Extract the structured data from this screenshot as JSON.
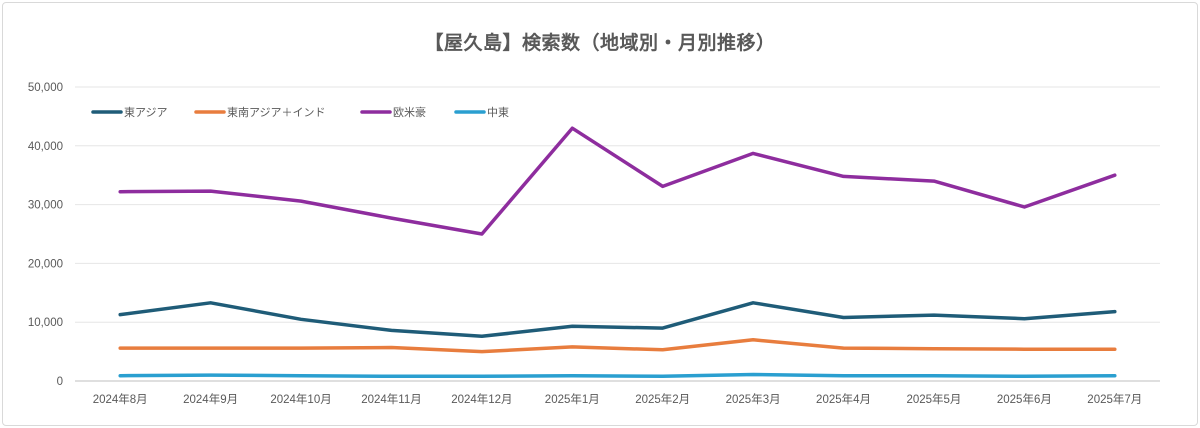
{
  "chart_data": {
    "type": "line",
    "title": "【屋久島】検索数（地域別・月別推移）",
    "x": [
      "2024年8月",
      "2024年9月",
      "2024年10月",
      "2024年11月",
      "2024年12月",
      "2025年1月",
      "2025年2月",
      "2025年3月",
      "2025年4月",
      "2025年5月",
      "2025年6月",
      "2025年7月"
    ],
    "ylim": [
      0,
      50000
    ],
    "yticks": [
      "0",
      "10,000",
      "20,000",
      "30,000",
      "40,000",
      "50,000"
    ],
    "ytick_values": [
      0,
      10000,
      20000,
      30000,
      40000,
      50000
    ],
    "grid": true,
    "legend_position": "top-left",
    "series": [
      {
        "name": "東アジア",
        "color": "#1f5c78",
        "values": [
          11300,
          13300,
          10500,
          8600,
          7600,
          9300,
          9000,
          13300,
          10800,
          11200,
          10600,
          11800
        ]
      },
      {
        "name": "東南アジア＋インド",
        "color": "#e87d3e",
        "values": [
          5600,
          5600,
          5600,
          5700,
          5000,
          5800,
          5300,
          7000,
          5600,
          5500,
          5400,
          5400
        ]
      },
      {
        "name": "欧米豪",
        "color": "#8e2d9e",
        "values": [
          32200,
          32300,
          30600,
          27700,
          25000,
          43000,
          33100,
          38700,
          34800,
          34000,
          29600,
          35000
        ]
      },
      {
        "name": "中東",
        "color": "#2a9fd0",
        "values": [
          900,
          1000,
          900,
          800,
          800,
          900,
          800,
          1100,
          900,
          900,
          800,
          900
        ]
      }
    ]
  }
}
